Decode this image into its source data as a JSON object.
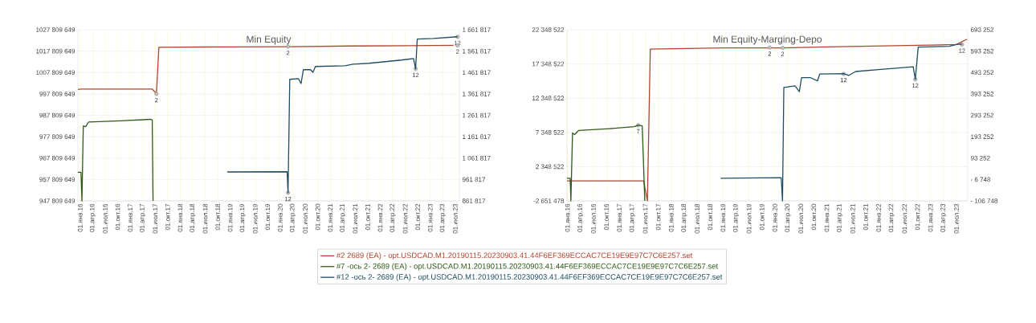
{
  "chart_data": [
    {
      "type": "line",
      "title": "Min Equity",
      "grid": true,
      "legend": "bottom",
      "xlim": [
        "2015-12-15",
        "2023-08-01"
      ],
      "xticks": [
        {
          "value": "2016-01-01",
          "label": "01.янв.16"
        },
        {
          "value": "2016-04-01",
          "label": "01.апр.16"
        },
        {
          "value": "2016-07-01",
          "label": "01.июл.16"
        },
        {
          "value": "2016-10-01",
          "label": "01.окт.16"
        },
        {
          "value": "2017-01-01",
          "label": "01.янв.17"
        },
        {
          "value": "2017-04-01",
          "label": "01.апр.17"
        },
        {
          "value": "2017-07-01",
          "label": "01.июл.17"
        },
        {
          "value": "2017-10-01",
          "label": "01.окт.17"
        },
        {
          "value": "2018-01-01",
          "label": "01.янв.18"
        },
        {
          "value": "2018-04-01",
          "label": "01.апр.18"
        },
        {
          "value": "2018-07-01",
          "label": "01.июл.18"
        },
        {
          "value": "2018-10-01",
          "label": "01.окт.18"
        },
        {
          "value": "2019-01-01",
          "label": "01.янв.19"
        },
        {
          "value": "2019-04-01",
          "label": "01.апр.19"
        },
        {
          "value": "2019-07-01",
          "label": "01.июл.19"
        },
        {
          "value": "2019-10-01",
          "label": "01.окт.19"
        },
        {
          "value": "2020-01-01",
          "label": "01.янв.20"
        },
        {
          "value": "2020-04-01",
          "label": "01.апр.20"
        },
        {
          "value": "2020-07-01",
          "label": "01.июл.20"
        },
        {
          "value": "2020-10-01",
          "label": "01.окт.20"
        },
        {
          "value": "2021-01-01",
          "label": "01.янв.21"
        },
        {
          "value": "2021-04-01",
          "label": "01.апр.21"
        },
        {
          "value": "2021-07-01",
          "label": "01.июл.21"
        },
        {
          "value": "2021-10-01",
          "label": "01.окт.21"
        },
        {
          "value": "2022-01-01",
          "label": "01.янв.22"
        },
        {
          "value": "2022-04-01",
          "label": "01.апр.22"
        },
        {
          "value": "2022-07-01",
          "label": "01.июл.22"
        },
        {
          "value": "2022-10-01",
          "label": "01.окт.22"
        },
        {
          "value": "2023-01-01",
          "label": "01.янв.23"
        },
        {
          "value": "2023-04-01",
          "label": "01.апр.23"
        },
        {
          "value": "2023-07-01",
          "label": "01.июл.23"
        }
      ],
      "ylim": [
        947809649,
        1027809649
      ],
      "yticks": [
        {
          "value": 947809649,
          "label": "947 809 649"
        },
        {
          "value": 957809649,
          "label": "957 809 649"
        },
        {
          "value": 967809649,
          "label": "967 809 649"
        },
        {
          "value": 977809649,
          "label": "977 809 649"
        },
        {
          "value": 987809649,
          "label": "987 809 649"
        },
        {
          "value": 997809649,
          "label": "997 809 649"
        },
        {
          "value": 1007809649,
          "label": "1007 809 649"
        },
        {
          "value": 1017809649,
          "label": "1017 809 649"
        },
        {
          "value": 1027809649,
          "label": "1027 809 649"
        }
      ],
      "y2lim": [
        861817,
        1661817
      ],
      "y2ticks": [
        {
          "value": 861817,
          "label": "861 817"
        },
        {
          "value": 961817,
          "label": "961 817"
        },
        {
          "value": 1061817,
          "label": "1 061 817"
        },
        {
          "value": 1161817,
          "label": "1 161 817"
        },
        {
          "value": 1261817,
          "label": "1 261 817"
        },
        {
          "value": 1361817,
          "label": "1 361 817"
        },
        {
          "value": 1461817,
          "label": "1 461 817"
        },
        {
          "value": 1561817,
          "label": "1 561 817"
        },
        {
          "value": 1661817,
          "label": "1 661 817"
        }
      ],
      "series": [
        {
          "name": "#2 2689 (EA) - opt.USDCAD.M1.20190115.20230903.41.44F6EF369ECCAC7CE19E9E97C7C6E257.set",
          "color": "#b0452f",
          "x": [
            "2015-12-15",
            "2016-01-05",
            "2017-06-10",
            "2017-07-10",
            "2017-07-28",
            "2018-12-01",
            "2020-03-01",
            "2021-06-01",
            "2023-07-18"
          ],
          "values": [
            999900000,
            1000100000,
            1000100000,
            997800000,
            1019600000,
            1019800000,
            1019900000,
            1020200000,
            1020500000
          ]
        },
        {
          "name": "#7 -ось 2- 2689 (EA) - opt.USDCAD.M1.20190115.20230903.41.44F6EF369ECCAC7CE19E9E97C7C6E257.set",
          "color": "#2f5a1a",
          "axis": "y2",
          "x": [
            "2015-12-15",
            "2016-01-07",
            "2016-01-14",
            "2016-01-24",
            "2016-02-11",
            "2016-03-01",
            "2016-10-19",
            "2017-06-01",
            "2017-06-10",
            "2017-06-16"
          ],
          "values": [
            996000,
            996000,
            861817,
            1212000,
            1209000,
            1230000,
            1236000,
            1243000,
            1240000,
            861817
          ]
        },
        {
          "name": "#12 -ось 2- 2689 (EA) - opt.USDCAD.M1.20190115.20230903.41.44F6EF369ECCAC7CE19E9E97C7C6E257.set",
          "color": "#1f4e62",
          "axis": "y2",
          "x": [
            "2018-12-10",
            "2020-02-21",
            "2020-02-28",
            "2020-03-10",
            "2020-05-13",
            "2020-06-01",
            "2020-06-18",
            "2020-08-10",
            "2020-08-27",
            "2020-09-15",
            "2021-04-19",
            "2021-06-15",
            "2021-10-12",
            "2022-06-03",
            "2022-09-01",
            "2022-09-16",
            "2022-09-28",
            "2023-01-24",
            "2023-07-18"
          ],
          "values": [
            997000,
            998000,
            900000,
            1430000,
            1433000,
            1410000,
            1475000,
            1475000,
            1463000,
            1490000,
            1493000,
            1501000,
            1505000,
            1520000,
            1527000,
            1479000,
            1618000,
            1621000,
            1629000
          ]
        }
      ],
      "annotations": [
        {
          "text": "2",
          "x": "2017-07-10",
          "y": 997800000
        },
        {
          "text": "2",
          "x": "2020-02-28",
          "y": 1019900000
        },
        {
          "text": "12",
          "x": "2020-02-28",
          "y": 951600000
        },
        {
          "text": "12",
          "x": "2022-09-16",
          "y": 1009500000
        },
        {
          "text": "12",
          "x": "2023-07-18",
          "y": 1024500000
        },
        {
          "text": "2",
          "x": "2023-07-18",
          "y": 1020500000
        }
      ]
    },
    {
      "type": "line",
      "title": "Min Equity-Marging-Depo",
      "grid": true,
      "xlim": [
        "2015-12-28",
        "2023-09-20"
      ],
      "xticks": [
        {
          "value": "2016-01-01",
          "label": "01.янв.16"
        },
        {
          "value": "2016-04-01",
          "label": "01.апр.16"
        },
        {
          "value": "2016-07-01",
          "label": "01.июл.16"
        },
        {
          "value": "2016-10-01",
          "label": "01.окт.16"
        },
        {
          "value": "2017-01-01",
          "label": "01.янв.17"
        },
        {
          "value": "2017-04-01",
          "label": "01.апр.17"
        },
        {
          "value": "2017-07-01",
          "label": "01.июл.17"
        },
        {
          "value": "2017-10-01",
          "label": "01.окт.17"
        },
        {
          "value": "2018-01-01",
          "label": "01.янв.18"
        },
        {
          "value": "2018-04-01",
          "label": "01.апр.18"
        },
        {
          "value": "2018-07-01",
          "label": "01.июл.18"
        },
        {
          "value": "2018-10-01",
          "label": "01.окт.18"
        },
        {
          "value": "2019-01-01",
          "label": "01.янв.19"
        },
        {
          "value": "2019-04-01",
          "label": "01.апр.19"
        },
        {
          "value": "2019-07-01",
          "label": "01.июл.19"
        },
        {
          "value": "2019-10-01",
          "label": "01.окт.19"
        },
        {
          "value": "2020-01-01",
          "label": "01.янв.20"
        },
        {
          "value": "2020-04-01",
          "label": "01.апр.20"
        },
        {
          "value": "2020-07-01",
          "label": "01.июл.20"
        },
        {
          "value": "2020-10-01",
          "label": "01.окт.20"
        },
        {
          "value": "2021-01-01",
          "label": "01.янв.21"
        },
        {
          "value": "2021-04-01",
          "label": "01.апр.21"
        },
        {
          "value": "2021-07-01",
          "label": "01.июл.21"
        },
        {
          "value": "2021-10-01",
          "label": "01.окт.21"
        },
        {
          "value": "2022-01-01",
          "label": "01.янв.22"
        },
        {
          "value": "2022-04-01",
          "label": "01.апр.22"
        },
        {
          "value": "2022-07-01",
          "label": "01.июл.22"
        },
        {
          "value": "2022-10-01",
          "label": "01.окт.22"
        },
        {
          "value": "2023-01-01",
          "label": "01.янв.23"
        },
        {
          "value": "2023-04-01",
          "label": "01.апр.23"
        },
        {
          "value": "2023-07-01",
          "label": "01.июл.23"
        }
      ],
      "ylim": [
        -2651478,
        22348522
      ],
      "yticks": [
        {
          "value": -2651478,
          "label": "-2 651 478"
        },
        {
          "value": 2348522,
          "label": "2 348 522"
        },
        {
          "value": 7348522,
          "label": "7 348 522"
        },
        {
          "value": 12348522,
          "label": "12 348 522"
        },
        {
          "value": 17348522,
          "label": "17 348 522"
        },
        {
          "value": 22348522,
          "label": "22 348 522"
        }
      ],
      "y2lim": [
        -106748,
        693252
      ],
      "y2ticks": [
        {
          "value": -106748,
          "label": "- 106 748"
        },
        {
          "value": -6748,
          "label": "- 6 748"
        },
        {
          "value": 93252,
          "label": "93 252"
        },
        {
          "value": 193252,
          "label": "193 252"
        },
        {
          "value": 293252,
          "label": "293 252"
        },
        {
          "value": 393252,
          "label": "393 252"
        },
        {
          "value": 493252,
          "label": "493 252"
        },
        {
          "value": 593252,
          "label": "593 252"
        },
        {
          "value": 693252,
          "label": "693 252"
        }
      ],
      "series": [
        {
          "color": "#b0452f",
          "x": [
            "2015-12-28",
            "2017-06-20",
            "2017-07-16",
            "2017-08-06",
            "2019-01-01",
            "2020-02-25",
            "2021-06-01",
            "2023-01-01",
            "2023-07-01",
            "2023-09-15"
          ],
          "values": [
            270000,
            270000,
            -2651478,
            19520000,
            19700000,
            19700000,
            19900000,
            20100000,
            20200000,
            20970000
          ]
        },
        {
          "color": "#2f5a1a",
          "axis": "y2",
          "x": [
            "2015-12-28",
            "2016-01-20",
            "2016-01-25",
            "2016-02-06",
            "2016-02-21",
            "2016-03-18",
            "2016-10-27",
            "2017-04-15",
            "2017-05-12",
            "2017-06-10",
            "2017-06-28"
          ],
          "values": [
            -1000,
            -1000,
            -106748,
            211000,
            203000,
            222000,
            231000,
            240000,
            247000,
            244000,
            -106748
          ]
        },
        {
          "color": "#1f4e62",
          "axis": "y2",
          "x": [
            "2018-12-15",
            "2020-02-15",
            "2020-02-24",
            "2020-03-03",
            "2020-05-21",
            "2020-06-21",
            "2020-07-06",
            "2020-09-10",
            "2020-10-27",
            "2020-11-12",
            "2021-04-28",
            "2021-06-06",
            "2021-07-21",
            "2022-02-03",
            "2022-09-01",
            "2022-09-16",
            "2022-10-06",
            "2023-05-12",
            "2023-07-01",
            "2023-08-10"
          ],
          "values": [
            -1000,
            2000,
            -106748,
            423000,
            431000,
            404000,
            469000,
            469000,
            454000,
            486000,
            488000,
            480000,
            498000,
            509000,
            520000,
            462000,
            612000,
            616000,
            624000,
            626000
          ]
        }
      ],
      "annotations": [
        {
          "text": "7",
          "x": "2017-05-12",
          "y": 8400000
        },
        {
          "text": "2",
          "x": "2019-11-25",
          "y": 19750000
        },
        {
          "text": "2",
          "x": "2020-02-25",
          "y": 19700000
        },
        {
          "text": "12",
          "x": "2021-04-28",
          "y": 15900000
        },
        {
          "text": "12",
          "x": "2022-09-16",
          "y": 15100000
        },
        {
          "text": "12",
          "x": "2023-08-10",
          "y": 20180000
        }
      ]
    }
  ]
}
